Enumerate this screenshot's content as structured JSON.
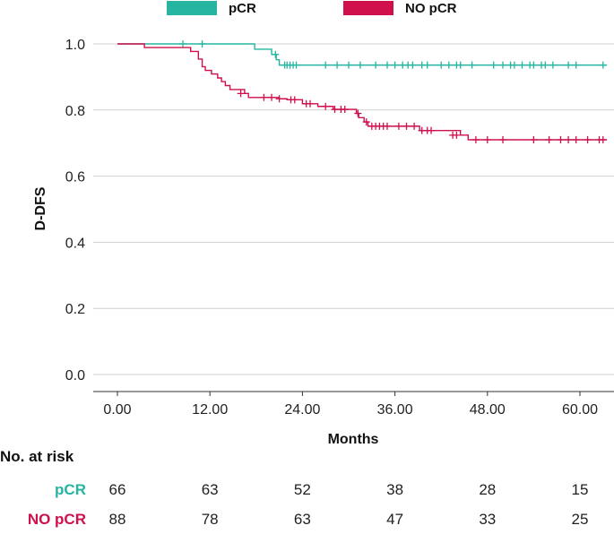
{
  "chart_data": {
    "type": "line",
    "subtype": "kaplan-meier",
    "title": "",
    "xlabel": "Months",
    "ylabel": "D-DFS",
    "xlim": [
      -2,
      63
    ],
    "ylim": [
      0,
      1.05
    ],
    "xticks": [
      0,
      12,
      24,
      36,
      48,
      60
    ],
    "xtick_labels": [
      "0.00",
      "12.00",
      "24.00",
      "36.00",
      "48.00",
      "60.00"
    ],
    "yticks": [
      0,
      0.2,
      0.4,
      0.6,
      0.8,
      1.0
    ],
    "ytick_labels": [
      "0.0",
      "0.2",
      "0.4",
      "0.6",
      "0.8",
      "1.0"
    ],
    "grid": "horizontal",
    "legend_position": "top",
    "series": [
      {
        "name": "pCR",
        "color": "#26b5a0",
        "steps": [
          [
            0,
            1.0
          ],
          [
            17.8,
            0.984
          ],
          [
            20.0,
            0.968
          ],
          [
            20.6,
            0.952
          ],
          [
            21.0,
            0.936
          ],
          [
            63.5,
            0.936
          ]
        ],
        "censored": [
          [
            8.5,
            1.0
          ],
          [
            11.0,
            1.0
          ],
          [
            20.5,
            0.968
          ],
          [
            21.7,
            0.936
          ],
          [
            22.0,
            0.936
          ],
          [
            22.4,
            0.936
          ],
          [
            22.8,
            0.936
          ],
          [
            23.2,
            0.936
          ],
          [
            27.0,
            0.936
          ],
          [
            28.5,
            0.936
          ],
          [
            30.0,
            0.936
          ],
          [
            31.5,
            0.936
          ],
          [
            33.5,
            0.936
          ],
          [
            35.0,
            0.936
          ],
          [
            36.0,
            0.936
          ],
          [
            37.0,
            0.936
          ],
          [
            37.7,
            0.936
          ],
          [
            38.3,
            0.936
          ],
          [
            39.5,
            0.936
          ],
          [
            40.2,
            0.936
          ],
          [
            42.0,
            0.936
          ],
          [
            43.0,
            0.936
          ],
          [
            44.0,
            0.936
          ],
          [
            44.5,
            0.936
          ],
          [
            46.0,
            0.936
          ],
          [
            48.8,
            0.936
          ],
          [
            50.0,
            0.936
          ],
          [
            51.0,
            0.936
          ],
          [
            51.5,
            0.936
          ],
          [
            52.5,
            0.936
          ],
          [
            53.5,
            0.936
          ],
          [
            54.0,
            0.936
          ],
          [
            55.0,
            0.936
          ],
          [
            55.5,
            0.936
          ],
          [
            56.5,
            0.936
          ],
          [
            58.5,
            0.936
          ],
          [
            59.5,
            0.936
          ],
          [
            63.0,
            0.936
          ]
        ]
      },
      {
        "name": "NO pCR",
        "color": "#d0104c",
        "steps": [
          [
            0,
            1.0
          ],
          [
            3.5,
            0.989
          ],
          [
            9.5,
            0.977
          ],
          [
            10.5,
            0.954
          ],
          [
            11.0,
            0.931
          ],
          [
            11.4,
            0.92
          ],
          [
            12.2,
            0.909
          ],
          [
            13.0,
            0.897
          ],
          [
            13.5,
            0.886
          ],
          [
            14.0,
            0.874
          ],
          [
            14.6,
            0.862
          ],
          [
            16.5,
            0.85
          ],
          [
            17.0,
            0.838
          ],
          [
            21.0,
            0.834
          ],
          [
            22.0,
            0.831
          ],
          [
            24.0,
            0.819
          ],
          [
            26.0,
            0.811
          ],
          [
            28.0,
            0.802
          ],
          [
            31.0,
            0.79
          ],
          [
            31.3,
            0.777
          ],
          [
            32.0,
            0.764
          ],
          [
            32.5,
            0.751
          ],
          [
            39.2,
            0.738
          ],
          [
            44.5,
            0.724
          ],
          [
            45.5,
            0.71
          ],
          [
            63.5,
            0.71
          ]
        ],
        "censored": [
          [
            16.0,
            0.85
          ],
          [
            19.0,
            0.838
          ],
          [
            20.0,
            0.838
          ],
          [
            21.0,
            0.834
          ],
          [
            22.5,
            0.831
          ],
          [
            23.0,
            0.831
          ],
          [
            24.5,
            0.819
          ],
          [
            25.0,
            0.819
          ],
          [
            27.0,
            0.811
          ],
          [
            28.2,
            0.802
          ],
          [
            29.0,
            0.802
          ],
          [
            29.5,
            0.802
          ],
          [
            31.2,
            0.79
          ],
          [
            32.3,
            0.764
          ],
          [
            33.0,
            0.751
          ],
          [
            33.5,
            0.751
          ],
          [
            34.0,
            0.751
          ],
          [
            34.5,
            0.751
          ],
          [
            35.0,
            0.751
          ],
          [
            36.5,
            0.751
          ],
          [
            37.5,
            0.751
          ],
          [
            38.5,
            0.751
          ],
          [
            39.5,
            0.738
          ],
          [
            40.2,
            0.738
          ],
          [
            40.7,
            0.738
          ],
          [
            43.5,
            0.724
          ],
          [
            44.0,
            0.724
          ],
          [
            46.5,
            0.71
          ],
          [
            48.0,
            0.71
          ],
          [
            50.0,
            0.71
          ],
          [
            54.0,
            0.71
          ],
          [
            56.0,
            0.71
          ],
          [
            57.5,
            0.71
          ],
          [
            58.5,
            0.71
          ],
          [
            59.5,
            0.71
          ],
          [
            61.0,
            0.71
          ],
          [
            62.5,
            0.71
          ],
          [
            63.0,
            0.71
          ]
        ]
      }
    ],
    "risk_table": {
      "title": "No. at risk",
      "rows": [
        {
          "label": "pCR",
          "color": "#26b5a0",
          "values": [
            66,
            63,
            52,
            38,
            28,
            15
          ]
        },
        {
          "label": "NO pCR",
          "color": "#d0104c",
          "values": [
            88,
            78,
            63,
            47,
            33,
            25
          ]
        }
      ]
    }
  }
}
